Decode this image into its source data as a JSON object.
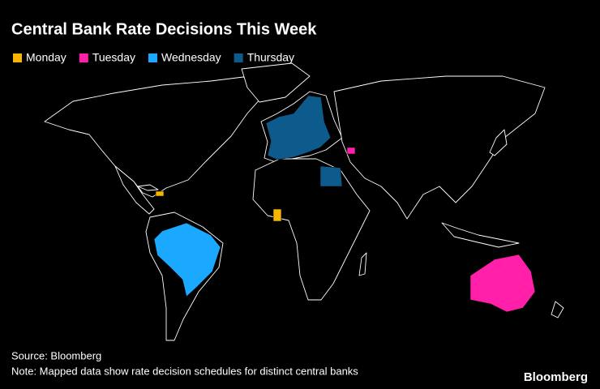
{
  "title": "Central Bank Rate Decisions This Week",
  "legend": [
    {
      "label": "Monday",
      "color": "#f7b500"
    },
    {
      "label": "Tuesday",
      "color": "#ff1fa9"
    },
    {
      "label": "Wednesday",
      "color": "#1aa9ff"
    },
    {
      "label": "Thursday",
      "color": "#0d5a8c"
    }
  ],
  "source": "Source: Bloomberg",
  "note": "Note: Mapped data show rate decision schedules for distinct central banks",
  "logo": "Bloomberg"
}
